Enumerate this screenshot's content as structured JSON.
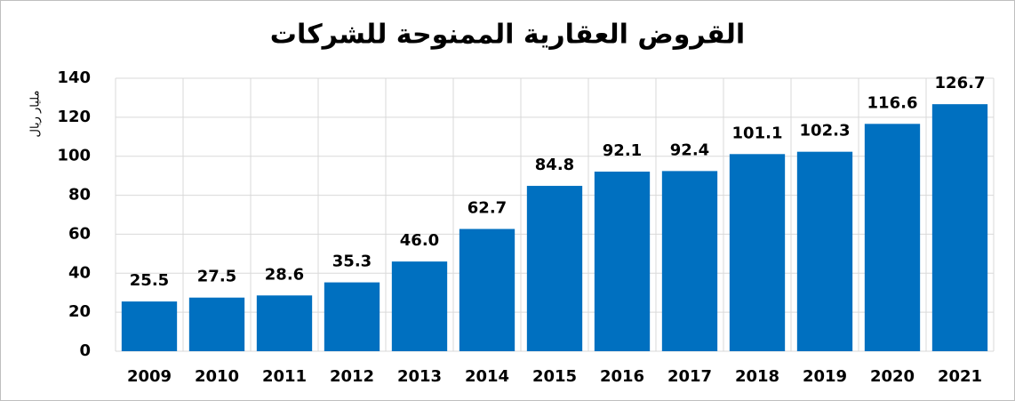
{
  "chart_data": {
    "type": "bar",
    "title": "القروض العقارية الممنوحة للشركات",
    "y_label": "مليار ريال",
    "categories": [
      "2009",
      "2010",
      "2011",
      "2012",
      "2013",
      "2014",
      "2015",
      "2016",
      "2017",
      "2018",
      "2019",
      "2020",
      "2021"
    ],
    "values": [
      25.5,
      27.5,
      28.6,
      35.3,
      46.0,
      62.7,
      84.8,
      92.1,
      92.4,
      101.1,
      102.3,
      116.6,
      126.7
    ],
    "value_labels": [
      "25.5",
      "27.5",
      "28.6",
      "35.3",
      "46.0",
      "62.7",
      "84.8",
      "92.1",
      "92.4",
      "101.1",
      "102.3",
      "116.6",
      "126.7"
    ],
    "color": "#0070c0",
    "ylim": [
      0,
      140
    ],
    "yticks": [
      0,
      20,
      40,
      60,
      80,
      100,
      120,
      140
    ],
    "grid": true
  }
}
